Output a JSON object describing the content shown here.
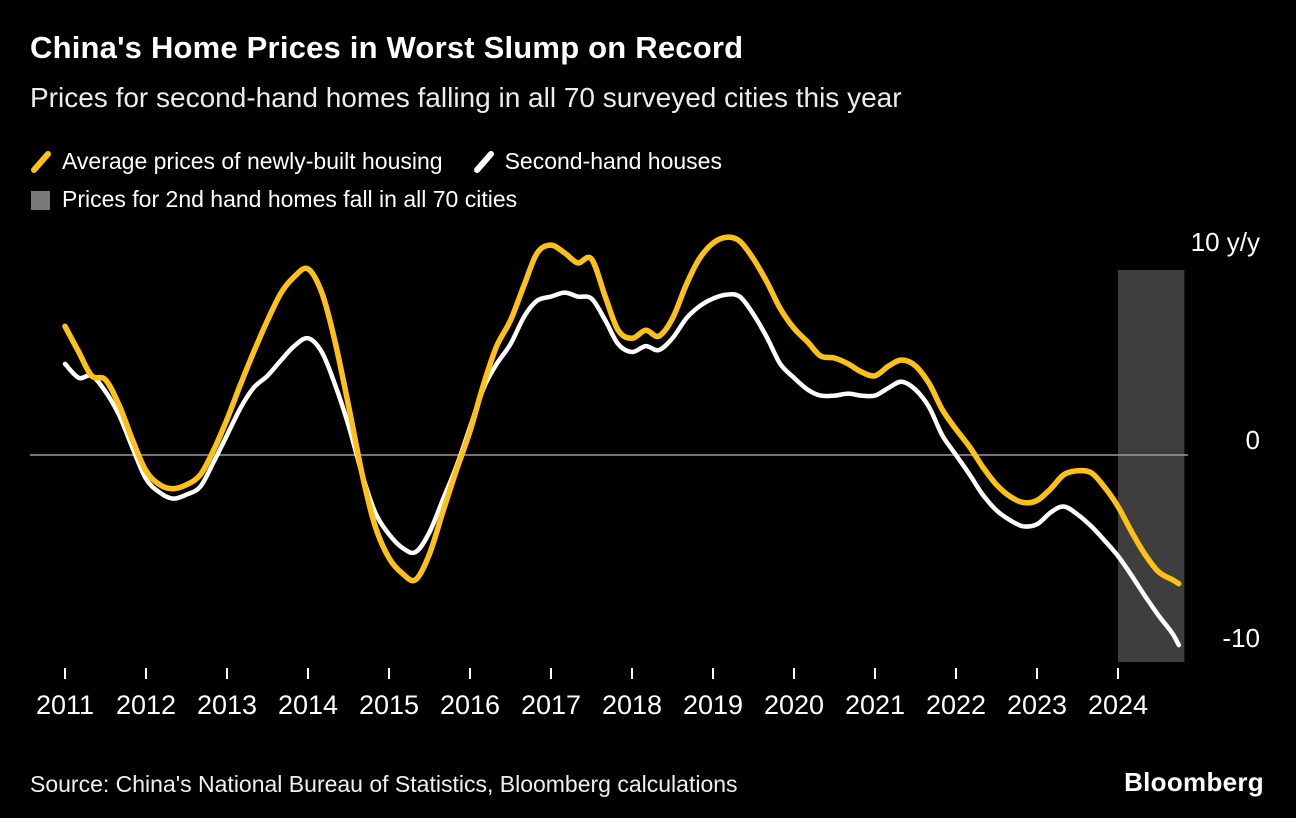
{
  "chart_data": {
    "type": "line",
    "title": "China's Home Prices in Worst Slump on Record",
    "subtitle": "Prices for second-hand homes falling in all 70 surveyed cities this year",
    "y_unit": "% y/y",
    "x_unit": "year",
    "legend_position": "top-left",
    "y_axis_side": "right",
    "grid": false,
    "zero_line": true,
    "xlim": [
      2010.6,
      2025.2
    ],
    "ylim": [
      -11,
      11.5
    ],
    "x": [
      2011,
      2011.17,
      2011.33,
      2011.5,
      2011.67,
      2011.83,
      2012,
      2012.17,
      2012.33,
      2012.5,
      2012.67,
      2012.83,
      2013,
      2013.17,
      2013.33,
      2013.5,
      2013.67,
      2013.83,
      2014,
      2014.17,
      2014.33,
      2014.5,
      2014.67,
      2014.83,
      2015,
      2015.17,
      2015.33,
      2015.5,
      2015.67,
      2015.83,
      2016,
      2016.17,
      2016.33,
      2016.5,
      2016.67,
      2016.83,
      2017,
      2017.17,
      2017.33,
      2017.5,
      2017.67,
      2017.83,
      2018,
      2018.17,
      2018.33,
      2018.5,
      2018.67,
      2018.83,
      2019,
      2019.17,
      2019.33,
      2019.5,
      2019.67,
      2019.83,
      2020,
      2020.17,
      2020.33,
      2020.5,
      2020.67,
      2020.83,
      2021,
      2021.17,
      2021.33,
      2021.5,
      2021.67,
      2021.83,
      2022,
      2022.17,
      2022.33,
      2022.5,
      2022.67,
      2022.83,
      2023,
      2023.17,
      2023.33,
      2023.5,
      2023.67,
      2023.83,
      2024,
      2024.17,
      2024.33,
      2024.5,
      2024.67,
      2024.75
    ],
    "series": [
      {
        "name": "Average prices of newly-built housing",
        "color": "#ffc116",
        "values": [
          6.5,
          5.2,
          4.0,
          3.8,
          2.5,
          0.8,
          -0.8,
          -1.5,
          -1.7,
          -1.5,
          -1.0,
          0.2,
          1.8,
          3.6,
          5.2,
          6.8,
          8.2,
          9.0,
          9.4,
          8.2,
          5.8,
          2.5,
          -1.0,
          -3.6,
          -5.2,
          -6.0,
          -6.3,
          -5.0,
          -2.8,
          -0.8,
          1.2,
          3.6,
          5.5,
          6.8,
          8.6,
          10.2,
          10.6,
          10.2,
          9.7,
          9.9,
          8.0,
          6.3,
          5.9,
          6.3,
          6.0,
          6.9,
          8.6,
          9.9,
          10.7,
          11.0,
          10.8,
          9.9,
          8.7,
          7.4,
          6.4,
          5.7,
          5.0,
          4.9,
          4.6,
          4.2,
          4.0,
          4.5,
          4.8,
          4.5,
          3.6,
          2.3,
          1.3,
          0.4,
          -0.6,
          -1.5,
          -2.1,
          -2.4,
          -2.3,
          -1.7,
          -1.0,
          -0.8,
          -0.9,
          -1.6,
          -2.6,
          -3.9,
          -5.0,
          -5.9,
          -6.3,
          -6.5
        ]
      },
      {
        "name": "Second-hand houses",
        "color": "#ffffff",
        "values": [
          4.6,
          3.9,
          4.0,
          3.2,
          2.0,
          0.4,
          -1.2,
          -1.9,
          -2.2,
          -2.0,
          -1.6,
          -0.4,
          1.0,
          2.4,
          3.4,
          4.0,
          4.8,
          5.5,
          5.9,
          5.2,
          3.6,
          1.5,
          -1.0,
          -2.9,
          -4.0,
          -4.7,
          -4.9,
          -3.9,
          -2.2,
          -0.6,
          1.4,
          3.4,
          4.6,
          5.6,
          7.0,
          7.8,
          8.0,
          8.2,
          8.0,
          7.9,
          6.8,
          5.6,
          5.2,
          5.5,
          5.3,
          5.9,
          6.9,
          7.5,
          7.9,
          8.1,
          8.0,
          7.1,
          5.9,
          4.6,
          3.9,
          3.3,
          3.0,
          3.0,
          3.1,
          3.0,
          3.0,
          3.4,
          3.7,
          3.3,
          2.4,
          1.0,
          0.0,
          -1.0,
          -2.0,
          -2.8,
          -3.3,
          -3.6,
          -3.5,
          -2.9,
          -2.6,
          -3.0,
          -3.6,
          -4.3,
          -5.1,
          -6.1,
          -7.1,
          -8.1,
          -9.0,
          -9.6
        ]
      }
    ],
    "shaded_region": {
      "label": "Prices for 2nd hand homes fall in all 70 cities",
      "x_start": 2024.0,
      "x_end": 2024.82,
      "color": "#3e3e3e",
      "legend_color": "#7a7a7a"
    },
    "y_ticks": [
      {
        "value": 10,
        "label": "10 y/y"
      },
      {
        "value": 0,
        "label": "0"
      },
      {
        "value": -10,
        "label": "-10"
      }
    ],
    "x_ticks": [
      2011,
      2012,
      2013,
      2014,
      2015,
      2016,
      2017,
      2018,
      2019,
      2020,
      2021,
      2022,
      2023,
      2024
    ],
    "x_tick_labels": [
      "2011",
      "2012",
      "2013",
      "2014",
      "2015",
      "2016",
      "2017",
      "2018",
      "2019",
      "2020",
      "2021",
      "2022",
      "2023",
      "2024"
    ]
  },
  "footer": {
    "source": "Source: China's National Bureau of Statistics, Bloomberg calculations",
    "brand": "Bloomberg"
  }
}
